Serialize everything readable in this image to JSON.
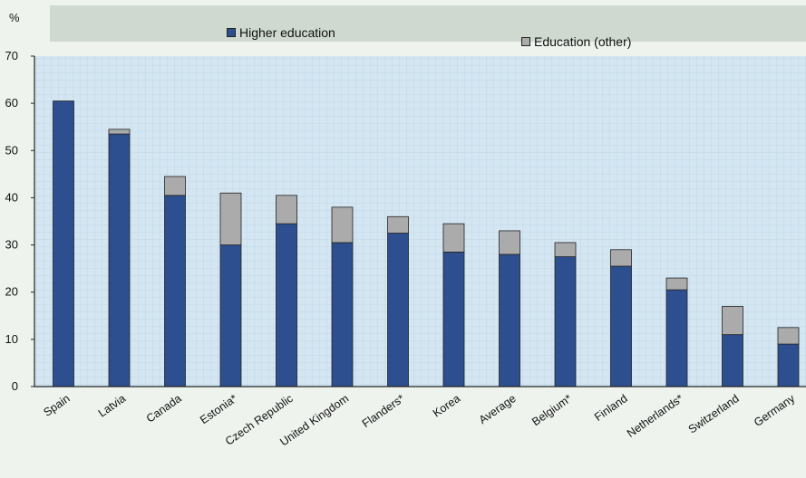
{
  "chart_data": {
    "type": "bar",
    "stacked": true,
    "ylabel": "%",
    "ylim": [
      0,
      70
    ],
    "yticks": [
      0,
      10,
      20,
      30,
      40,
      50,
      60,
      70
    ],
    "grid": false,
    "legend_position": "top",
    "categories": [
      "Spain",
      "Latvia",
      "Canada",
      "Estonia*",
      "Czech Republic",
      "United Kingdom",
      "Flanders*",
      "Korea",
      "Average",
      "Belgium*",
      "Finland",
      "Netherlands*",
      "Switzerland",
      "Germany"
    ],
    "series": [
      {
        "name": "Higher education",
        "color": "#2d4f8f",
        "values": [
          60.5,
          53.5,
          40.5,
          30.0,
          34.5,
          30.5,
          32.5,
          28.5,
          28.0,
          27.5,
          25.5,
          20.5,
          11.0,
          9.0
        ]
      },
      {
        "name": "Education (other)",
        "color": "#ababab",
        "values": [
          0.0,
          1.0,
          4.0,
          11.0,
          6.0,
          7.5,
          3.5,
          6.0,
          5.0,
          3.0,
          3.5,
          2.5,
          6.0,
          3.5
        ]
      }
    ]
  }
}
